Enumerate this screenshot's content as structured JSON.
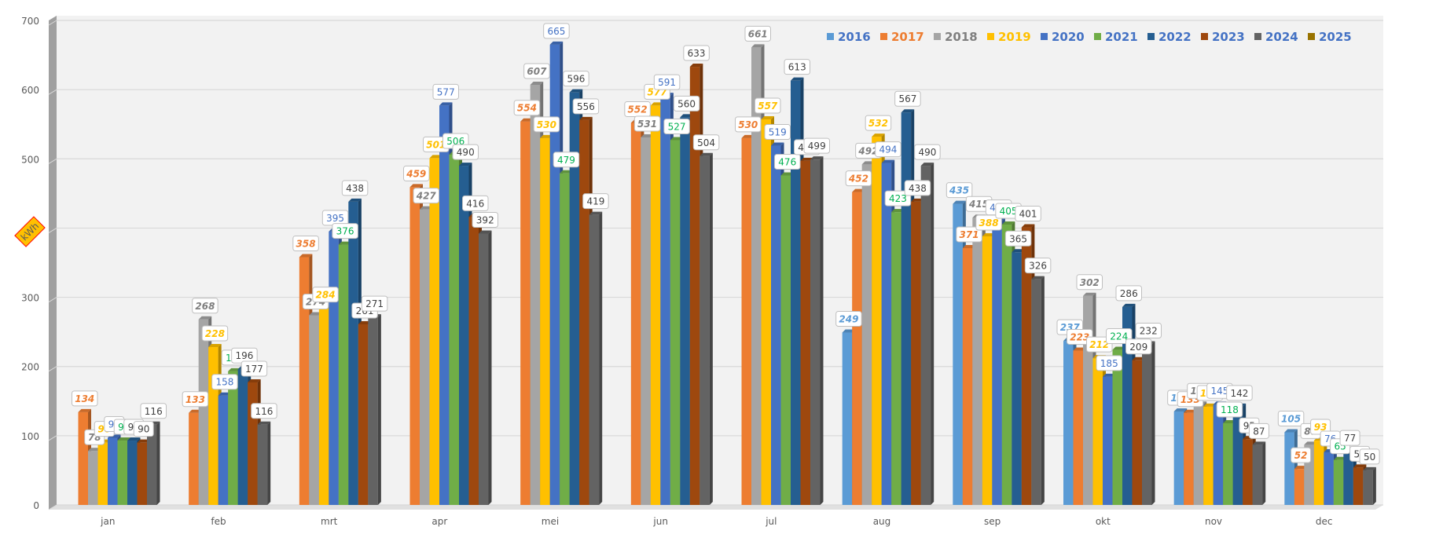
{
  "chart_data": {
    "type": "bar",
    "title": "",
    "xlabel": "",
    "ylabel": "kWh",
    "ylim": [
      0,
      700
    ],
    "yticks": [
      0,
      100,
      200,
      300,
      400,
      500,
      600,
      700
    ],
    "grid": true,
    "legend_position": "top-right",
    "categories": [
      "jan",
      "feb",
      "mrt",
      "apr",
      "mei",
      "jun",
      "jul",
      "aug",
      "sep",
      "okt",
      "nov",
      "dec"
    ],
    "series": [
      {
        "name": "2016",
        "color": "#5B9BD5",
        "label_color": "#5B9BD5",
        "italic": true,
        "values": [
          null,
          null,
          null,
          null,
          null,
          null,
          null,
          249,
          435,
          237,
          135,
          105
        ]
      },
      {
        "name": "2017",
        "color": "#ED7D31",
        "label_color": "#ED7D31",
        "italic": true,
        "values": [
          134,
          133,
          358,
          459,
          554,
          552,
          530,
          452,
          371,
          223,
          133,
          52
        ]
      },
      {
        "name": "2018",
        "color": "#A5A5A5",
        "label_color": "#7F7F7F",
        "italic": true,
        "values": [
          78,
          268,
          274,
          427,
          607,
          531,
          661,
          492,
          415,
          302,
          145,
          87
        ]
      },
      {
        "name": "2019",
        "color": "#FFC000",
        "label_color": "#FFC000",
        "italic": true,
        "values": [
          90,
          228,
          284,
          501,
          530,
          577,
          557,
          532,
          388,
          212,
          142,
          93
        ]
      },
      {
        "name": "2020",
        "color": "#4472C4",
        "label_color": "#4472C4",
        "italic": false,
        "values": [
          97,
          158,
          395,
          577,
          665,
          591,
          519,
          494,
          410,
          185,
          145,
          76
        ]
      },
      {
        "name": "2021",
        "color": "#70AD47",
        "label_color": "#00B050",
        "italic": false,
        "values": [
          93,
          193,
          376,
          506,
          479,
          527,
          476,
          423,
          405,
          224,
          118,
          65
        ]
      },
      {
        "name": "2022",
        "color": "#255E91",
        "label_color": "#404040",
        "italic": false,
        "values": [
          93,
          196,
          438,
          490,
          596,
          560,
          613,
          567,
          365,
          286,
          142,
          77
        ]
      },
      {
        "name": "2023",
        "color": "#9E480E",
        "label_color": "#404040",
        "italic": false,
        "values": [
          90,
          177,
          261,
          416,
          556,
          633,
          497,
          438,
          401,
          209,
          95,
          54
        ]
      },
      {
        "name": "2024",
        "color": "#636363",
        "label_color": "#404040",
        "italic": false,
        "values": [
          116,
          116,
          271,
          392,
          419,
          504,
          499,
          490,
          326,
          232,
          87,
          50
        ]
      },
      {
        "name": "2025",
        "color": "#997300",
        "label_color": "#4472C4",
        "italic": false,
        "values": [
          null,
          null,
          null,
          null,
          null,
          null,
          null,
          null,
          null,
          null,
          null,
          null
        ]
      }
    ],
    "legend_text_color": "#4472C4",
    "background": "#F2F2F2",
    "ylabel_badge": {
      "text": "kWh",
      "fill": "#FFC000",
      "border": "#FF0000"
    }
  }
}
